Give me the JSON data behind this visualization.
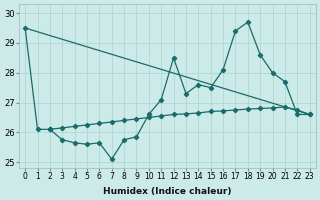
{
  "title": "",
  "xlabel": "Humidex (Indice chaleur)",
  "bg_color": "#cceae7",
  "grid_color": "#aad4d0",
  "line_color": "#1a6b6b",
  "ylim": [
    24.8,
    30.3
  ],
  "yticks": [
    25,
    26,
    27,
    28,
    29,
    30
  ],
  "xlim": [
    -0.5,
    23.5
  ],
  "series1_x": [
    0,
    1,
    2
  ],
  "series1_y": [
    29.5,
    26.1,
    26.1
  ],
  "series2_x": [
    2,
    3,
    4,
    5,
    6,
    7,
    8,
    9,
    10,
    11,
    12,
    13,
    14,
    15,
    16,
    17,
    18,
    19,
    20,
    21,
    22,
    23
  ],
  "series2_y": [
    26.1,
    25.75,
    25.65,
    25.6,
    25.65,
    25.1,
    25.75,
    25.85,
    26.6,
    27.1,
    28.5,
    27.3,
    27.6,
    27.5,
    28.1,
    29.4,
    29.7,
    28.6,
    28.0,
    27.7,
    26.6,
    26.6
  ],
  "series3_x": [
    2,
    3,
    4,
    5,
    6,
    7,
    8,
    9,
    10,
    11,
    12,
    13,
    14,
    15,
    16,
    17,
    18,
    19,
    20,
    21,
    22,
    23
  ],
  "series3_y": [
    26.1,
    26.15,
    26.2,
    26.25,
    26.3,
    26.35,
    26.4,
    26.45,
    26.5,
    26.55,
    26.6,
    26.62,
    26.65,
    26.7,
    26.72,
    26.75,
    26.78,
    26.8,
    26.82,
    26.85,
    26.75,
    26.6
  ]
}
